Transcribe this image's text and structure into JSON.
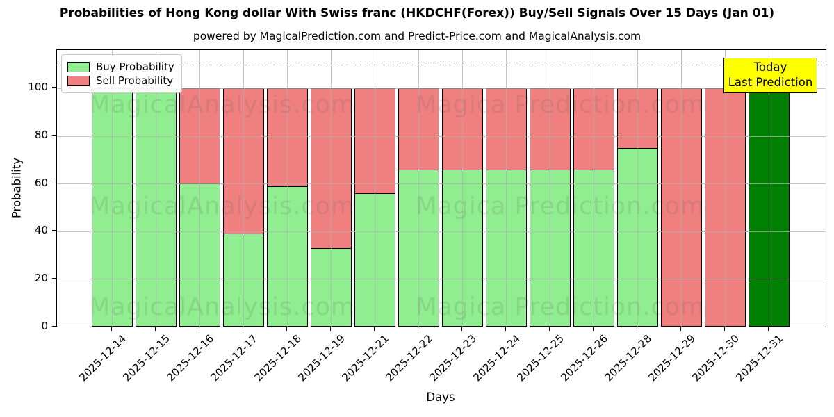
{
  "title": "Probabilities of Hong Kong dollar With Swiss franc (HKDCHF(Forex)) Buy/Sell Signals Over 15 Days (Jan 01)",
  "subtitle": "powered by MagicalPrediction.com and Predict-Price.com and MagicalAnalysis.com",
  "watermarks": {
    "left_text": "MagicalAnalysis.com",
    "right_text": "Magica Prediction.com"
  },
  "legend": {
    "items": [
      {
        "label": "Buy Probability",
        "color": "#90EE90"
      },
      {
        "label": "Sell Probability",
        "color": "#F08080"
      }
    ]
  },
  "annotation": {
    "line1": "Today",
    "line2": "Last Prediction",
    "bg_color": "#ffff00"
  },
  "axes": {
    "xlabel": "Days",
    "ylabel": "Probability",
    "yticks": [
      0,
      20,
      40,
      60,
      80,
      100
    ]
  },
  "chart_data": {
    "type": "bar",
    "stacked": true,
    "title": "Probabilities of Hong Kong dollar With Swiss franc (HKDCHF(Forex)) Buy/Sell Signals Over 15 Days (Jan 01)",
    "xlabel": "Days",
    "ylabel": "Probability",
    "ylim": [
      0,
      116
    ],
    "grid": true,
    "legend_position": "upper-left",
    "dashed_line_y": 110,
    "categories": [
      "2025-12-14",
      "2025-12-15",
      "2025-12-16",
      "2025-12-17",
      "2025-12-18",
      "2025-12-19",
      "2025-12-21",
      "2025-12-22",
      "2025-12-23",
      "2025-12-24",
      "2025-12-25",
      "2025-12-26",
      "2025-12-28",
      "2025-12-29",
      "2025-12-30",
      "2025-12-31"
    ],
    "series": [
      {
        "name": "Buy Probability",
        "color": "#90EE90",
        "values": [
          100,
          100,
          60,
          39,
          59,
          33,
          56,
          66,
          66,
          66,
          66,
          66,
          75,
          0,
          0,
          100
        ]
      },
      {
        "name": "Sell Probability",
        "color": "#F08080",
        "values": [
          0,
          0,
          40,
          61,
          41,
          67,
          44,
          34,
          34,
          34,
          34,
          34,
          25,
          100,
          100,
          0
        ]
      }
    ],
    "today_index": 15,
    "today_color": "#008000"
  }
}
